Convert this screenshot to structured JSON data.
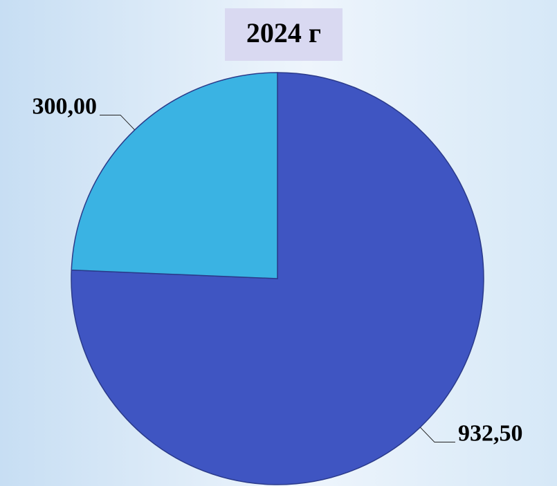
{
  "chart_data": {
    "type": "pie",
    "title": "2024 г",
    "categories": [
      null,
      null
    ],
    "values": [
      932.5,
      300
    ],
    "value_labels": [
      "932,50",
      "300,00"
    ],
    "colors": [
      "#3f55c2",
      "#3ab3e3"
    ]
  }
}
